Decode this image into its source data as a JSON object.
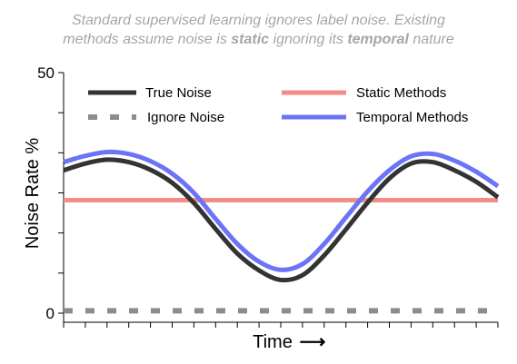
{
  "subtitle": {
    "line1": "Standard supervised learning ignores label noise. Existing",
    "line2_pre": "methods assume noise is ",
    "line2_static": "static",
    "line2_mid": " ignoring its ",
    "line2_temporal": "temporal",
    "line2_post": " nature"
  },
  "chart_data": {
    "type": "line",
    "title": "",
    "xlabel": "Time",
    "xlabel_arrow": "⟶",
    "ylabel": "Noise Rate %",
    "ylim": [
      0,
      50
    ],
    "xlim": [
      0,
      10
    ],
    "y_tick_labels": [
      "0",
      "50"
    ],
    "grid": false,
    "legend_placement": "top",
    "x": [
      0,
      0.5,
      1,
      1.5,
      2,
      2.5,
      3,
      3.5,
      4,
      4.5,
      5,
      5.5,
      6,
      6.5,
      7,
      7.5,
      8,
      8.5,
      9,
      9.5,
      10
    ],
    "series": [
      {
        "name": "True Noise",
        "color": "#333333",
        "style": "solid",
        "values": [
          29.7,
          31.1,
          31.9,
          31.4,
          29.8,
          27.1,
          22.9,
          17.5,
          12.4,
          8.9,
          6.9,
          7.9,
          12.0,
          17.4,
          23.0,
          28.0,
          31.1,
          31.4,
          29.7,
          27.3,
          24.1
        ]
      },
      {
        "name": "Static Methods",
        "color": "#f08d87",
        "style": "solid",
        "values": [
          23.5,
          23.5,
          23.5,
          23.5,
          23.5,
          23.5,
          23.5,
          23.5,
          23.5,
          23.5,
          23.5,
          23.5,
          23.5,
          23.5,
          23.5,
          23.5,
          23.5,
          23.5,
          23.5,
          23.5,
          23.5
        ]
      },
      {
        "name": "Ignore Noise",
        "color": "#8c8c8c",
        "style": "dashed",
        "values": [
          0.5,
          0.5,
          0.5,
          0.5,
          0.5,
          0.5,
          0.5,
          0.5,
          0.5,
          0.5,
          0.5,
          0.5,
          0.5,
          0.5,
          0.5,
          0.5,
          0.5,
          0.5,
          0.5,
          0.5,
          0.5
        ]
      },
      {
        "name": "Temporal Methods",
        "color": "#6b73f7",
        "style": "solid",
        "values": [
          31.4,
          32.7,
          33.5,
          33.1,
          31.6,
          29.0,
          25.0,
          19.6,
          14.4,
          10.7,
          9.0,
          10.2,
          14.4,
          19.9,
          25.3,
          29.7,
          32.6,
          33.1,
          31.7,
          29.4,
          26.4
        ]
      }
    ],
    "legend": [
      {
        "name": "True Noise",
        "column": 0,
        "row": 0
      },
      {
        "name": "Ignore Noise",
        "column": 0,
        "row": 1
      },
      {
        "name": "Static Methods",
        "column": 1,
        "row": 0
      },
      {
        "name": "Temporal Methods",
        "column": 1,
        "row": 1
      }
    ]
  }
}
